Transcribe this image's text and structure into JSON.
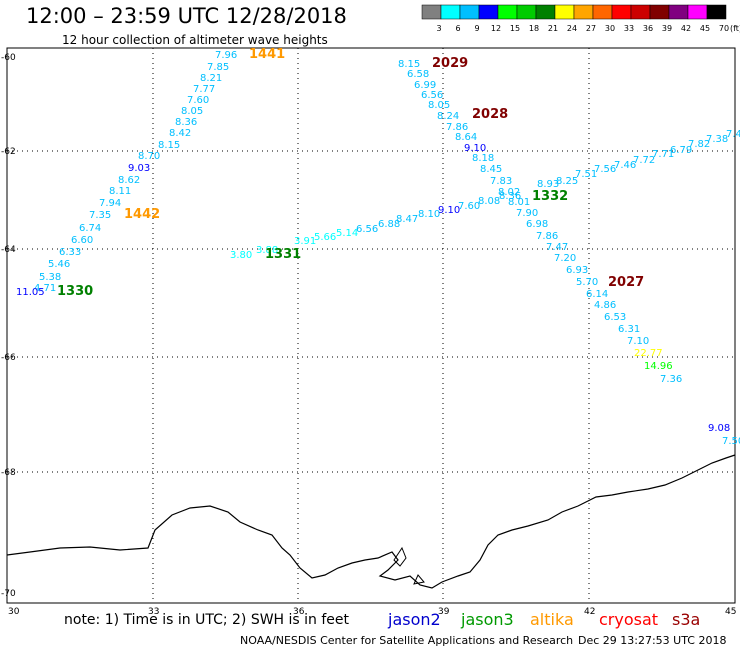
{
  "header": {
    "title": "12:00 – 23:59 UTC 12/28/2018",
    "subtitle": "12 hour collection of altimeter wave heights"
  },
  "colorbar": {
    "labels": [
      "3",
      "6",
      "9",
      "12",
      "15",
      "18",
      "21",
      "24",
      "27",
      "30",
      "33",
      "36",
      "39",
      "42",
      "45",
      "70"
    ],
    "unit": "(ft)",
    "colors": [
      "#808080",
      "#00ffff",
      "#00bfff",
      "#0000ff",
      "#00ff00",
      "#00cc00",
      "#008000",
      "#ffff00",
      "#ffa500",
      "#ff6600",
      "#ff0000",
      "#cc0000",
      "#800000",
      "#800080",
      "#ff00ff",
      "#000000"
    ]
  },
  "axes": {
    "x_ticks": [
      "30",
      "33",
      "36",
      "39",
      "42",
      "45"
    ],
    "y_ticks": [
      "-60",
      "-62",
      "-64",
      "-66",
      "-68",
      "-70"
    ],
    "lon_range": [
      30,
      45
    ],
    "lat_range": [
      -70,
      -60
    ]
  },
  "tracks": [
    {
      "label": "1441",
      "label_color": "#ff9900",
      "label_pos": [
        249,
        58
      ],
      "points": [
        [
          215,
          58,
          "7.96",
          "#00bfff"
        ],
        [
          207,
          70,
          "7.85",
          "#00bfff"
        ],
        [
          200,
          81,
          "8.21",
          "#00bfff"
        ],
        [
          193,
          92,
          "7.77",
          "#00bfff"
        ],
        [
          187,
          103,
          "7.60",
          "#00bfff"
        ],
        [
          181,
          114,
          "8.05",
          "#00bfff"
        ],
        [
          175,
          125,
          "8.36",
          "#00bfff"
        ],
        [
          169,
          136,
          "8.42",
          "#00bfff"
        ],
        [
          158,
          148,
          "8.15",
          "#00bfff"
        ],
        [
          138,
          159,
          "8.70",
          "#00bfff"
        ],
        [
          128,
          171,
          "9.03",
          "#0000ff"
        ],
        [
          118,
          183,
          "8.62",
          "#00bfff"
        ],
        [
          109,
          194,
          "8.11",
          "#00bfff"
        ],
        [
          99,
          206,
          "7.94",
          "#00bfff"
        ],
        [
          89,
          218,
          "7.35",
          "#00bfff"
        ],
        [
          79,
          231,
          "6.74",
          "#00bfff"
        ],
        [
          71,
          243,
          "6.60",
          "#00bfff"
        ],
        [
          59,
          255,
          "6.33",
          "#00bfff"
        ],
        [
          48,
          267,
          "5.46",
          "#00bfff"
        ],
        [
          39,
          280,
          "5.38",
          "#00bfff"
        ],
        [
          34,
          291,
          "4.71",
          "#00bfff"
        ],
        [
          16,
          295,
          "11.05",
          "#0000ff"
        ]
      ]
    },
    {
      "label": "1442",
      "label_color": "#ff9900",
      "label_pos": [
        124,
        218
      ],
      "points": []
    },
    {
      "label": "1330",
      "label_color": "#008000",
      "label_pos": [
        57,
        295
      ],
      "points": []
    },
    {
      "label": "1331",
      "label_color": "#008000",
      "label_pos": [
        265,
        258
      ],
      "points": [
        [
          230,
          258,
          "3.80",
          "#00ffff"
        ],
        [
          256,
          253,
          "3.88",
          "#00ffff"
        ],
        [
          294,
          244,
          "3.91",
          "#00ffff"
        ],
        [
          314,
          240,
          "5.66",
          "#00ffff"
        ],
        [
          336,
          236,
          "5.14",
          "#00ffff"
        ],
        [
          356,
          232,
          "6.56",
          "#00bfff"
        ],
        [
          378,
          227,
          "6.88",
          "#00bfff"
        ],
        [
          396,
          222,
          "8.47",
          "#00bfff"
        ],
        [
          418,
          217,
          "8.10",
          "#00bfff"
        ],
        [
          438,
          213,
          "9.10",
          "#0000ff"
        ],
        [
          458,
          209,
          "7.60",
          "#00bfff"
        ],
        [
          478,
          204,
          "8.08",
          "#00bfff"
        ],
        [
          499,
          199,
          "8.36",
          "#00bfff"
        ],
        [
          537,
          187,
          "8.93",
          "#00bfff"
        ],
        [
          556,
          184,
          "8.25",
          "#00bfff"
        ],
        [
          575,
          177,
          "7.51",
          "#00bfff"
        ],
        [
          594,
          172,
          "7.56",
          "#00bfff"
        ],
        [
          614,
          168,
          "7.46",
          "#00bfff"
        ],
        [
          633,
          163,
          "7.72",
          "#00bfff"
        ],
        [
          652,
          157,
          "7.71",
          "#00bfff"
        ],
        [
          670,
          153,
          "6.79",
          "#00bfff"
        ],
        [
          688,
          147,
          "7.82",
          "#00bfff"
        ],
        [
          706,
          142,
          "7.38",
          "#00bfff"
        ],
        [
          726,
          137,
          "7.4",
          "#00bfff"
        ]
      ]
    },
    {
      "label": "1332",
      "label_color": "#008000",
      "label_pos": [
        532,
        200
      ],
      "points": []
    },
    {
      "label": "2029",
      "label_color": "#800000",
      "label_pos": [
        432,
        67
      ],
      "points": [
        [
          398,
          67,
          "8.15",
          "#00bfff"
        ],
        [
          407,
          77,
          "6.58",
          "#00bfff"
        ],
        [
          414,
          88,
          "6.99",
          "#00bfff"
        ],
        [
          421,
          98,
          "6.56",
          "#00bfff"
        ],
        [
          428,
          108,
          "8.05",
          "#00bfff"
        ],
        [
          437,
          119,
          "8.24",
          "#00bfff"
        ],
        [
          446,
          130,
          "7.86",
          "#00bfff"
        ],
        [
          455,
          140,
          "8.64",
          "#00bfff"
        ],
        [
          464,
          151,
          "9.10",
          "#0000ff"
        ],
        [
          472,
          161,
          "8.18",
          "#00bfff"
        ],
        [
          480,
          172,
          "8.45",
          "#00bfff"
        ],
        [
          490,
          184,
          "7.83",
          "#00bfff"
        ],
        [
          498,
          195,
          "8.02",
          "#00bfff"
        ],
        [
          508,
          205,
          "8.01",
          "#00bfff"
        ],
        [
          516,
          216,
          "7.90",
          "#00bfff"
        ],
        [
          526,
          227,
          "6.98",
          "#00bfff"
        ],
        [
          536,
          239,
          "7.86",
          "#00bfff"
        ],
        [
          546,
          250,
          "7.47",
          "#00bfff"
        ],
        [
          554,
          261,
          "7.20",
          "#00bfff"
        ],
        [
          566,
          273,
          "6.93",
          "#00bfff"
        ],
        [
          576,
          285,
          "5.70",
          "#00bfff"
        ],
        [
          586,
          297,
          "6.14",
          "#00bfff"
        ],
        [
          594,
          308,
          "4.86",
          "#00bfff"
        ],
        [
          604,
          320,
          "6.53",
          "#00bfff"
        ],
        [
          618,
          332,
          "6.31",
          "#00bfff"
        ],
        [
          627,
          344,
          "7.10",
          "#00bfff"
        ],
        [
          634,
          356,
          "22.77",
          "#ffff00"
        ],
        [
          644,
          369,
          "14.96",
          "#00ff00"
        ],
        [
          660,
          382,
          "7.36",
          "#00bfff"
        ]
      ]
    },
    {
      "label": "2028",
      "label_color": "#800000",
      "label_pos": [
        472,
        118
      ],
      "points": []
    },
    {
      "label": "2027",
      "label_color": "#800000",
      "label_pos": [
        608,
        286
      ],
      "points": []
    },
    {
      "label": "",
      "label_color": "#800000",
      "label_pos": [
        0,
        0
      ],
      "points": [
        [
          708,
          431,
          "9.08",
          "#0000ff"
        ],
        [
          722,
          444,
          "7.50",
          "#00bfff"
        ]
      ]
    }
  ],
  "note": "note: 1) Time is in UTC; 2) SWH is in feet",
  "satellites": [
    {
      "name": "jason2",
      "color": "#0000cc"
    },
    {
      "name": "jason3",
      "color": "#009900"
    },
    {
      "name": "altika",
      "color": "#ff9900"
    },
    {
      "name": "cryosat",
      "color": "#ff0000"
    },
    {
      "name": "s3a",
      "color": "#990000"
    }
  ],
  "credit": "NOAA/NESDIS Center for Satellite Applications and Research",
  "timestamp": "Dec 29 13:27:53 UTC 2018"
}
